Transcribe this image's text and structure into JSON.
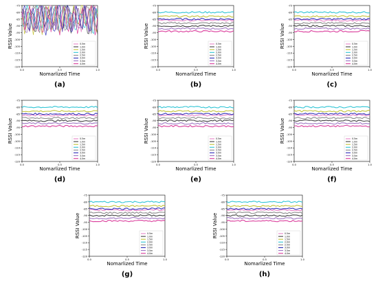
{
  "figure": {
    "panels": [
      {
        "id": "a",
        "caption": "(a)",
        "variant": "noisy"
      },
      {
        "id": "b",
        "caption": "(b)",
        "variant": "flat"
      },
      {
        "id": "c",
        "caption": "(c)",
        "variant": "flat"
      },
      {
        "id": "d",
        "caption": "(d)",
        "variant": "flat"
      },
      {
        "id": "e",
        "caption": "(e)",
        "variant": "flat"
      },
      {
        "id": "f",
        "caption": "(f)",
        "variant": "flat"
      },
      {
        "id": "g",
        "caption": "(g)",
        "variant": "flat"
      },
      {
        "id": "h",
        "caption": "(h)",
        "variant": "flat"
      }
    ]
  },
  "chart_data": {
    "type": "line",
    "xlabel": "Nomarlized Time",
    "ylabel": "RSSI Value",
    "xlim": [
      0.0,
      1.0
    ],
    "ylim": [
      -120,
      -75
    ],
    "xticks": [
      "0.0",
      "0.5",
      "1.0"
    ],
    "yticks": [
      "-75",
      "-80",
      "-85",
      "-90",
      "-95",
      "-100",
      "-105",
      "-110",
      "-115",
      "-120"
    ],
    "legend_placement": "lower-right",
    "series": [
      {
        "name": "0.5m",
        "color": "#e377c2",
        "level": -86
      },
      {
        "name": "1.0m",
        "color": "#2f2f2f",
        "level": -90
      },
      {
        "name": "1.5m",
        "color": "#bcbd22",
        "level": -83
      },
      {
        "name": "2.0m",
        "color": "#17becf",
        "level": -80
      },
      {
        "name": "2.5m",
        "color": "#7f7f7f",
        "level": -88
      },
      {
        "name": "3.0m",
        "color": "#1f1fb4",
        "level": -85
      },
      {
        "name": "3.5m",
        "color": "#9467bd",
        "level": -92
      },
      {
        "name": "4.0m",
        "color": "#d62790",
        "level": -94
      }
    ]
  }
}
